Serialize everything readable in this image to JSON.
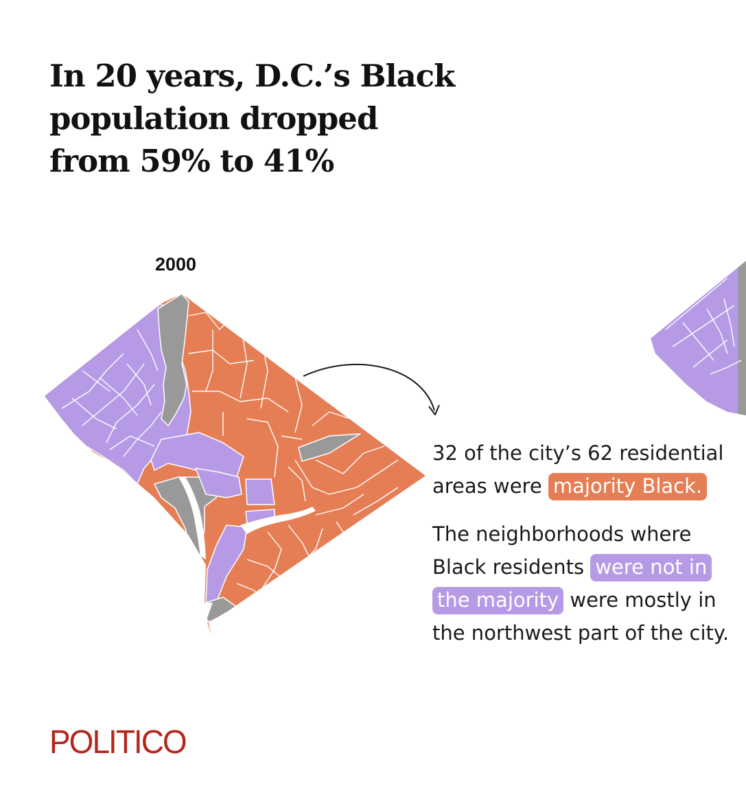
{
  "headline": {
    "line1": "In 20 years, D.C.’s Black",
    "line2": "population dropped",
    "line3": "from 59% to 41%"
  },
  "map": {
    "year_label": "2000",
    "colors": {
      "majority_black": "#e57e55",
      "not_majority_black": "#b69ae6",
      "no_data": "#999999",
      "boundary": "#ffffff"
    },
    "majority_black_areas": 32,
    "total_residential_areas": 62
  },
  "annotation": {
    "p1_text": "32 of the city’s 62 residential areas were",
    "p1_highlight": "majority Black.",
    "p2_text_before": "The neighborhoods where Black residents",
    "p2_highlight": "were not in the majority",
    "p2_text_after": "were mostly in the northwest part of the city."
  },
  "brand": {
    "logo": "POLITICO",
    "logo_color": "#b3261e"
  }
}
